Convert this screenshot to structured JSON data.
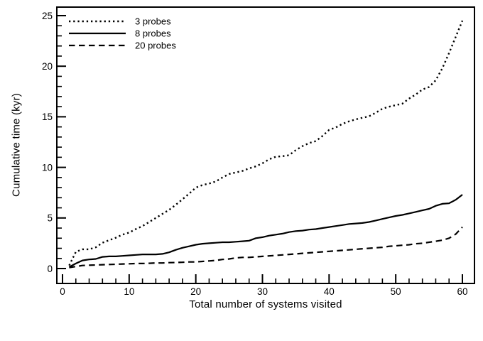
{
  "figure": {
    "background": "#ffffff",
    "ink": "#000000"
  },
  "chart_data": {
    "type": "line",
    "title": "",
    "xlabel": "Total number of systems visited",
    "ylabel": "Cumulative time (kyr)",
    "xlim": [
      -0.9,
      61.8
    ],
    "ylim": [
      -1.5,
      25.8
    ],
    "x_ticks_major": [
      0,
      10,
      20,
      30,
      40,
      50,
      60
    ],
    "x_tick_labels": [
      "0",
      "10",
      "20",
      "30",
      "40",
      "50",
      "60"
    ],
    "x_minor_step": 2,
    "y_ticks_major": [
      0,
      5,
      10,
      15,
      20,
      25
    ],
    "y_tick_labels": [
      "0",
      "5",
      "10",
      "15",
      "20",
      "25"
    ],
    "y_minor_step": 1,
    "grid": false,
    "legend_position": "top-left",
    "x": [
      1,
      2,
      3,
      4,
      5,
      6,
      7,
      8,
      9,
      10,
      11,
      12,
      13,
      14,
      15,
      16,
      17,
      18,
      19,
      20,
      21,
      22,
      23,
      24,
      25,
      26,
      27,
      28,
      29,
      30,
      31,
      32,
      33,
      34,
      35,
      36,
      37,
      38,
      39,
      40,
      41,
      42,
      43,
      44,
      45,
      46,
      47,
      48,
      49,
      50,
      51,
      52,
      53,
      54,
      55,
      56,
      57,
      58,
      59,
      60
    ],
    "series": [
      {
        "name": "3 probes",
        "style": "dotted",
        "values": [
          0.3,
          1.65,
          1.9,
          1.9,
          2.1,
          2.55,
          2.8,
          3.05,
          3.35,
          3.55,
          3.9,
          4.2,
          4.6,
          5.0,
          5.4,
          5.8,
          6.3,
          6.85,
          7.4,
          8.0,
          8.25,
          8.4,
          8.6,
          9.0,
          9.35,
          9.5,
          9.65,
          9.9,
          10.1,
          10.4,
          10.8,
          11.05,
          11.1,
          11.2,
          11.7,
          12.1,
          12.4,
          12.6,
          13.1,
          13.7,
          13.95,
          14.3,
          14.55,
          14.75,
          14.9,
          15.05,
          15.4,
          15.8,
          16.0,
          16.15,
          16.3,
          16.8,
          17.2,
          17.7,
          17.95,
          18.6,
          19.8,
          21.3,
          22.9,
          24.5
        ]
      },
      {
        "name": "8 probes",
        "style": "solid",
        "values": [
          0.15,
          0.5,
          0.8,
          0.9,
          0.95,
          1.15,
          1.2,
          1.2,
          1.25,
          1.3,
          1.35,
          1.4,
          1.4,
          1.4,
          1.45,
          1.6,
          1.85,
          2.05,
          2.2,
          2.35,
          2.45,
          2.5,
          2.55,
          2.6,
          2.6,
          2.65,
          2.7,
          2.75,
          3.0,
          3.1,
          3.25,
          3.35,
          3.45,
          3.6,
          3.7,
          3.75,
          3.85,
          3.9,
          4.0,
          4.1,
          4.2,
          4.3,
          4.4,
          4.45,
          4.5,
          4.6,
          4.75,
          4.9,
          5.05,
          5.2,
          5.3,
          5.45,
          5.6,
          5.75,
          5.9,
          6.2,
          6.4,
          6.45,
          6.8,
          7.3
        ]
      },
      {
        "name": "20 probes",
        "style": "dashed",
        "values": [
          0.1,
          0.2,
          0.3,
          0.33,
          0.35,
          0.38,
          0.4,
          0.42,
          0.45,
          0.47,
          0.5,
          0.5,
          0.52,
          0.55,
          0.55,
          0.58,
          0.6,
          0.62,
          0.65,
          0.65,
          0.7,
          0.75,
          0.8,
          0.9,
          0.95,
          1.05,
          1.1,
          1.1,
          1.15,
          1.2,
          1.25,
          1.3,
          1.35,
          1.4,
          1.45,
          1.5,
          1.55,
          1.6,
          1.65,
          1.7,
          1.75,
          1.8,
          1.85,
          1.9,
          1.95,
          2.0,
          2.05,
          2.1,
          2.2,
          2.25,
          2.3,
          2.35,
          2.45,
          2.5,
          2.6,
          2.7,
          2.8,
          3.0,
          3.4,
          4.1
        ]
      }
    ]
  }
}
